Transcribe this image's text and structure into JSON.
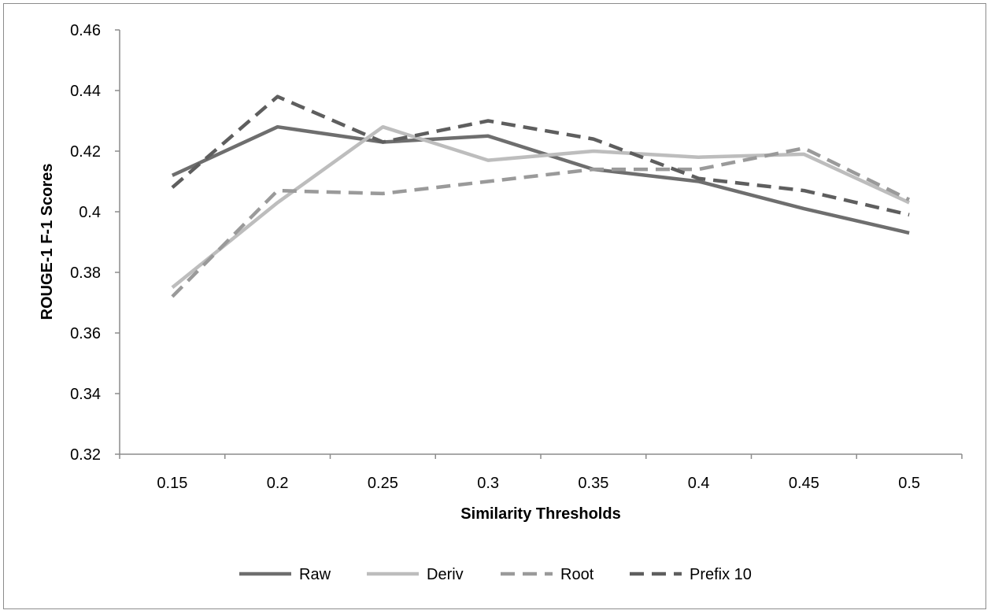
{
  "chart_data": {
    "type": "line",
    "title": "",
    "xlabel": "Similarity Thresholds",
    "ylabel": "ROUGE-1 F-1 Scores",
    "categories": [
      "0.15",
      "0.2",
      "0.25",
      "0.3",
      "0.35",
      "0.4",
      "0.45",
      "0.5"
    ],
    "ylim": [
      0.32,
      0.46
    ],
    "yticks": [
      "0.32",
      "0.34",
      "0.36",
      "0.38",
      "0.4",
      "0.42",
      "0.44",
      "0.46"
    ],
    "grid": false,
    "legend_position": "bottom",
    "series": [
      {
        "name": "Raw",
        "style": "solid",
        "color": "#6e6e6e",
        "values": [
          0.412,
          0.428,
          0.423,
          0.425,
          0.414,
          0.41,
          0.401,
          0.393
        ]
      },
      {
        "name": "Deriv",
        "style": "solid",
        "color": "#bdbdbd",
        "values": [
          0.375,
          0.403,
          0.428,
          0.417,
          0.42,
          0.418,
          0.419,
          0.403
        ]
      },
      {
        "name": "Root",
        "style": "dashed",
        "color": "#9a9a9a",
        "values": [
          0.372,
          0.407,
          0.406,
          0.41,
          0.414,
          0.414,
          0.421,
          0.404
        ]
      },
      {
        "name": "Prefix 10",
        "style": "dashed",
        "color": "#5e5e5e",
        "values": [
          0.408,
          0.438,
          0.423,
          0.43,
          0.424,
          0.411,
          0.407,
          0.399
        ]
      }
    ]
  }
}
